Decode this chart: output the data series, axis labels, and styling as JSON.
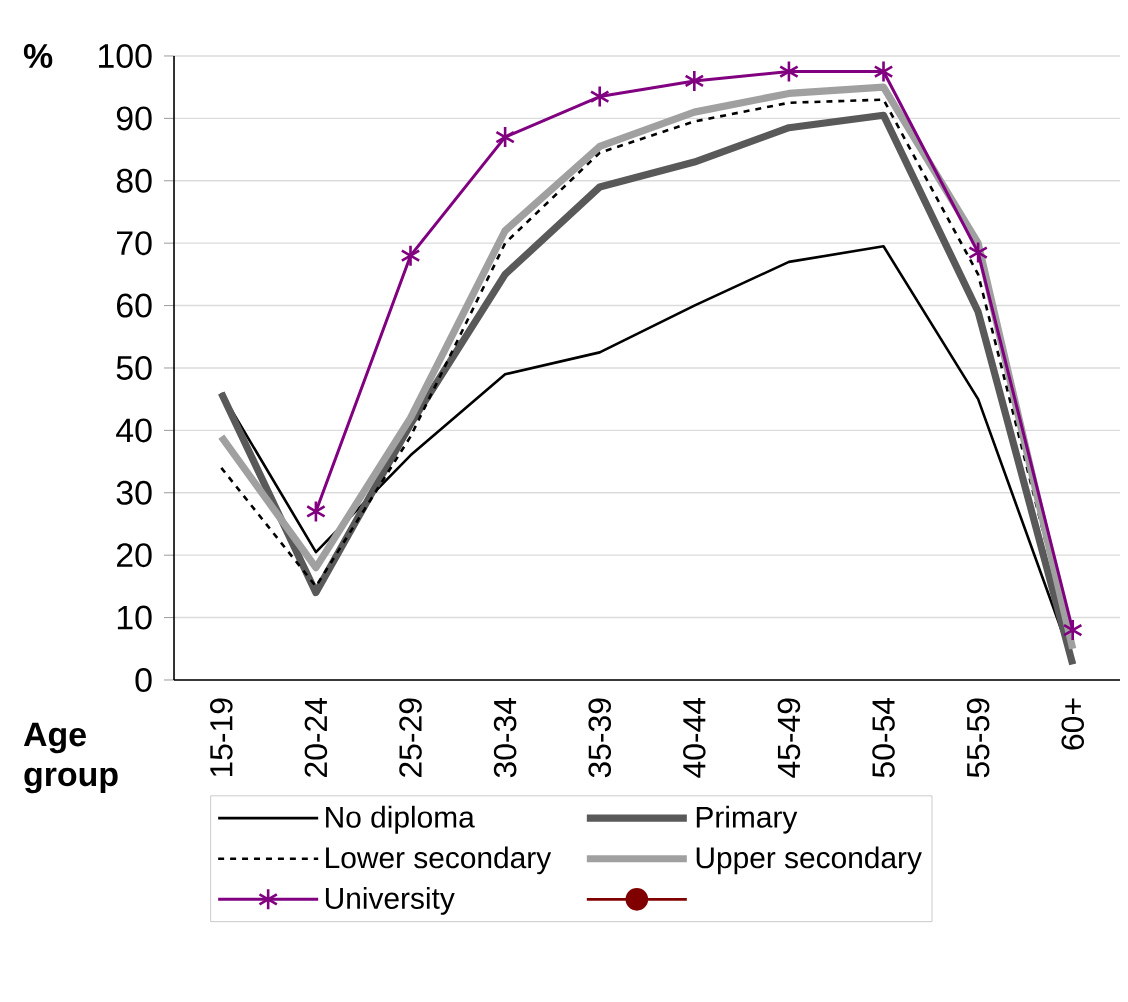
{
  "chart_data": {
    "type": "line",
    "ylabel": "%",
    "xlabel": "Age group",
    "categories": [
      "15-19",
      "20-24",
      "25-29",
      "30-34",
      "35-39",
      "40-44",
      "45-49",
      "50-54",
      "55-59",
      "60+"
    ],
    "series": [
      {
        "name": "No diploma",
        "color": "#000000",
        "values": [
          46,
          20.5,
          36,
          49,
          52.5,
          60,
          67,
          69.5,
          45,
          3
        ]
      },
      {
        "name": "Primary",
        "color": "#595959",
        "values": [
          46,
          14,
          41,
          65,
          79,
          83,
          88.5,
          90.5,
          59,
          2.5
        ]
      },
      {
        "name": "Lower secondary",
        "color": "#000000",
        "line_style": "dashed",
        "values": [
          34,
          15,
          39,
          70,
          84.5,
          89.5,
          92.5,
          93,
          65,
          5
        ]
      },
      {
        "name": "Upper secondary",
        "color": "#a0a0a0",
        "values": [
          39,
          18,
          42,
          72,
          85.5,
          91,
          94,
          95,
          70,
          5
        ]
      },
      {
        "name": "University",
        "color": "#800080",
        "marker": "cross",
        "values": [
          null,
          27,
          68,
          87,
          93.5,
          96,
          97.5,
          97.5,
          68.5,
          8
        ]
      },
      {
        "color": "#800000",
        "marker": "circle",
        "values": [
          null,
          null,
          null,
          null,
          null,
          null,
          null,
          null,
          null,
          null
        ]
      }
    ],
    "ylim": [
      0,
      100
    ],
    "yticks": [
      0,
      10,
      20,
      30,
      40,
      50,
      60,
      70,
      80,
      90,
      100
    ],
    "grid": "y",
    "legend": "bottom",
    "marker": "none",
    "line_style": "solid"
  }
}
